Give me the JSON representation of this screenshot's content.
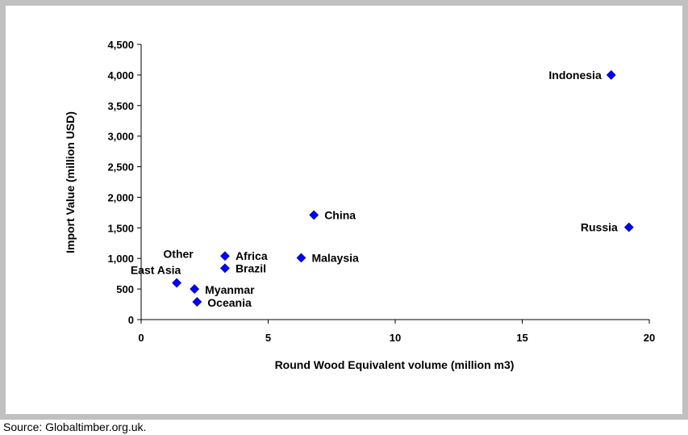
{
  "chart_data": {
    "type": "scatter",
    "title": "",
    "xlabel": "Round Wood Equivalent volume (million m3)",
    "ylabel": "Import Value (million USD)",
    "xlim": [
      0,
      20
    ],
    "ylim": [
      0,
      4500
    ],
    "x_ticks": [
      0,
      5,
      10,
      15,
      20
    ],
    "x_tick_labels": [
      "0",
      "5",
      "10",
      "15",
      "20"
    ],
    "y_ticks": [
      0,
      500,
      1000,
      1500,
      2000,
      2500,
      3000,
      3500,
      4000,
      4500
    ],
    "y_tick_labels": [
      "0",
      "500",
      "1,000",
      "1,500",
      "2,000",
      "2,500",
      "3,000",
      "3,500",
      "4,000",
      "4,500"
    ],
    "grid": false,
    "legend": "none",
    "marker_color": "#0000ff",
    "marker_shape": "diamond",
    "points": [
      {
        "label": "Indonesia",
        "x": 18.5,
        "y": 4000
      },
      {
        "label": "Russia",
        "x": 19.2,
        "y": 1510
      },
      {
        "label": "China",
        "x": 6.8,
        "y": 1710
      },
      {
        "label": "Malaysia",
        "x": 6.3,
        "y": 1010
      },
      {
        "label": "Africa",
        "x": 3.3,
        "y": 1040
      },
      {
        "label": "Brazil",
        "x": 3.3,
        "y": 840
      },
      {
        "label": "Other East Asia",
        "x": 1.4,
        "y": 600
      },
      {
        "label": "Myanmar",
        "x": 2.1,
        "y": 500
      },
      {
        "label": "Oceania",
        "x": 2.2,
        "y": 290
      }
    ]
  },
  "source": "Source: Globaltimber.org.uk."
}
